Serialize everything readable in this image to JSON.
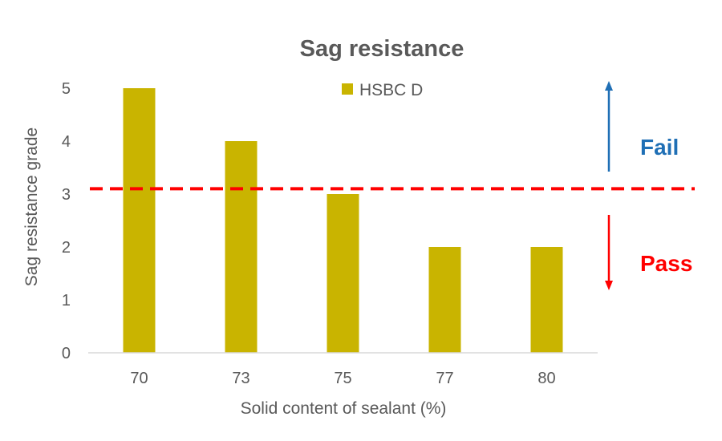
{
  "chart_data": {
    "type": "bar",
    "title": "Sag resistance",
    "xlabel": "Solid content of sealant (%)",
    "ylabel": "Sag resistance grade",
    "categories": [
      "70",
      "73",
      "75",
      "77",
      "80"
    ],
    "series": [
      {
        "name": "HSBC D",
        "values": [
          5,
          4,
          3,
          2,
          2
        ],
        "color": "#C9B400"
      }
    ],
    "ylim": [
      0,
      5
    ],
    "yticks": [
      0,
      1,
      2,
      3,
      4,
      5
    ],
    "grid": false,
    "legend": "top-center",
    "threshold": {
      "value": 3.1,
      "style": "dashed",
      "color": "#FF0000"
    },
    "annotations": {
      "fail": {
        "text": "Fail",
        "color": "#1F6FB5"
      },
      "pass": {
        "text": "Pass",
        "color": "#FF0000"
      }
    }
  }
}
